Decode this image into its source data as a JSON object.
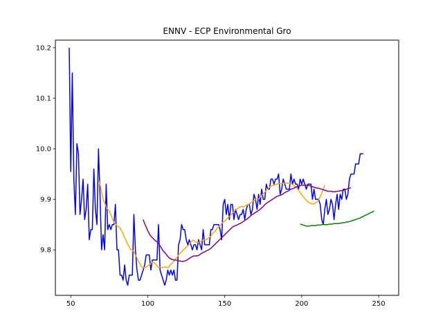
{
  "chart_data": {
    "type": "line",
    "title": "ENNV - ECP Environmental Gro",
    "xlabel": "",
    "ylabel": "",
    "xlim": [
      40,
      263
    ],
    "ylim": [
      9.71,
      10.215
    ],
    "xticks": [
      50,
      100,
      150,
      200,
      250
    ],
    "yticks": [
      9.8,
      9.9,
      10.0,
      10.1,
      10.2
    ],
    "grid": false,
    "legend": "none",
    "series": [
      {
        "color": "#0000ff",
        "x_start": 49,
        "values": [
          10.2,
          9.955,
          10.15,
          9.94,
          9.87,
          10.01,
          9.99,
          9.87,
          9.9,
          9.94,
          9.86,
          9.88,
          9.93,
          9.82,
          9.84,
          9.84,
          9.96,
          9.88,
          9.85,
          10.0,
          9.91,
          9.8,
          9.83,
          9.8,
          9.93,
          9.84,
          9.85,
          9.84,
          9.85,
          9.85,
          9.89,
          9.8,
          9.8,
          9.75,
          9.75,
          9.74,
          9.77,
          9.74,
          9.73,
          9.75,
          9.75,
          9.75,
          9.87,
          9.8,
          9.76,
          9.74,
          9.74,
          9.75,
          9.76,
          9.77,
          9.79,
          9.79,
          9.79,
          9.76,
          9.78,
          9.78,
          9.78,
          9.78,
          9.85,
          9.76,
          9.75,
          9.74,
          9.73,
          9.74,
          9.76,
          9.75,
          9.76,
          9.75,
          9.76,
          9.74,
          9.74,
          9.81,
          9.82,
          9.85,
          9.84,
          9.84,
          9.82,
          9.81,
          9.82,
          9.81,
          9.8,
          9.81,
          9.81,
          9.8,
          9.82,
          9.81,
          9.8,
          9.84,
          9.81,
          9.81,
          9.81,
          9.81,
          9.84,
          9.84,
          9.85,
          9.85,
          9.85,
          9.85,
          9.84,
          9.82,
          9.89,
          9.9,
          9.87,
          9.89,
          9.86,
          9.89,
          9.89,
          9.86,
          9.88,
          9.87,
          9.86,
          9.87,
          9.87,
          9.88,
          9.86,
          9.88,
          9.89,
          9.89,
          9.87,
          9.88,
          9.91,
          9.9,
          9.88,
          9.91,
          9.89,
          9.92,
          9.9,
          9.9,
          9.93,
          9.92,
          9.92,
          9.94,
          9.94,
          9.93,
          9.94,
          9.94,
          9.95,
          9.91,
          9.92,
          9.94,
          9.93,
          9.92,
          9.92,
          9.92,
          9.95,
          9.93,
          9.94,
          9.93,
          9.93,
          9.92,
          9.94,
          9.93,
          9.94,
          9.93,
          9.92,
          9.93,
          9.93,
          9.93,
          9.9,
          9.92,
          9.9,
          9.9,
          9.9,
          9.89,
          9.86,
          9.85,
          9.88,
          9.9,
          9.87,
          9.88,
          9.9,
          9.89,
          9.86,
          9.89,
          9.91,
          9.88,
          9.91,
          9.9,
          9.92,
          9.92,
          9.9,
          9.91,
          9.94,
          9.95,
          9.95,
          9.95,
          9.97,
          9.97,
          9.97,
          9.99,
          9.99,
          9.99
        ]
      },
      {
        "color": "#ffa500",
        "x_start": 68,
        "values": [
          9.938,
          9.93,
          9.915,
          9.9,
          9.893,
          9.885,
          9.88,
          9.877,
          9.87,
          9.862,
          9.855,
          9.851,
          9.848,
          9.846,
          9.843,
          9.838,
          9.832,
          9.824,
          9.818,
          9.811,
          9.806,
          9.8,
          9.8,
          9.797,
          9.79,
          9.784,
          9.777,
          9.772,
          9.766,
          9.765,
          9.765,
          9.766,
          9.768,
          9.77,
          9.773,
          9.776,
          9.775,
          9.772,
          9.769,
          9.765,
          9.766,
          9.765,
          9.765,
          9.766,
          9.766,
          9.765,
          9.767,
          9.772,
          9.774,
          9.778,
          9.782,
          9.785,
          9.79,
          9.793,
          9.796,
          9.8,
          9.802,
          9.805,
          9.808,
          9.811,
          9.815,
          9.819,
          9.818,
          9.816,
          9.815,
          9.815,
          9.816,
          9.818,
          9.819,
          9.82,
          9.82,
          9.822,
          9.825,
          9.827,
          9.832,
          9.835,
          9.838,
          9.843,
          9.845,
          9.848,
          9.852,
          9.855,
          9.857,
          9.86,
          9.863,
          9.866,
          9.869,
          9.873,
          9.876,
          9.879,
          9.881,
          9.883,
          9.885,
          9.886,
          9.885,
          9.886,
          9.888,
          9.889,
          9.891,
          9.893,
          9.896,
          9.897,
          9.9,
          9.901,
          9.901,
          9.904,
          9.908,
          9.911,
          9.914,
          9.918,
          9.92,
          9.924,
          9.926,
          9.927,
          9.928,
          9.929,
          9.93,
          9.931,
          9.931,
          9.931,
          9.932,
          9.932,
          9.932,
          9.932,
          9.931,
          9.931,
          9.929,
          9.927,
          9.925,
          9.922,
          9.918,
          9.914,
          9.909,
          9.905,
          9.902,
          9.898,
          9.895,
          9.893,
          9.892,
          9.891,
          9.891,
          9.893,
          9.895,
          9.899,
          9.905,
          9.912,
          9.92,
          9.928
        ]
      },
      {
        "color": "#800080",
        "x_start": 97,
        "values": [
          9.86,
          9.852,
          9.845,
          9.838,
          9.832,
          9.827,
          9.824,
          9.821,
          9.818,
          9.816,
          9.812,
          9.808,
          9.803,
          9.798,
          9.795,
          9.791,
          9.787,
          9.784,
          9.782,
          9.781,
          9.78,
          9.78,
          9.779,
          9.778,
          9.778,
          9.777,
          9.777,
          9.778,
          9.779,
          9.781,
          9.783,
          9.785,
          9.787,
          9.788,
          9.788,
          9.788,
          9.789,
          9.791,
          9.793,
          9.795,
          9.796,
          9.798,
          9.799,
          9.801,
          9.803,
          9.806,
          9.809,
          9.812,
          9.815,
          9.818,
          9.821,
          9.824,
          9.827,
          9.83,
          9.833,
          9.836,
          9.839,
          9.842,
          9.845,
          9.847,
          9.848,
          9.849,
          9.851,
          9.852,
          9.854,
          9.856,
          9.858,
          9.86,
          9.862,
          9.865,
          9.868,
          9.87,
          9.872,
          9.874,
          9.876,
          9.878,
          9.88,
          9.883,
          9.886,
          9.889,
          9.892,
          9.894,
          9.896,
          9.898,
          9.9,
          9.902,
          9.904,
          9.906,
          9.907,
          9.908,
          9.909,
          9.911,
          9.913,
          9.915,
          9.916,
          9.918,
          9.92,
          9.921,
          9.922,
          9.924,
          9.925,
          9.926,
          9.927,
          9.928,
          9.928,
          9.928,
          9.928,
          9.928,
          9.927,
          9.926,
          9.925,
          9.924,
          9.923,
          9.922,
          9.922,
          9.921,
          9.92,
          9.919,
          9.918,
          9.917,
          9.916,
          9.916,
          9.916,
          9.915,
          9.915,
          9.915,
          9.916,
          9.916,
          9.917,
          9.917,
          9.918,
          9.919,
          9.92,
          9.921,
          9.922,
          9.923
        ]
      },
      {
        "color": "#008000",
        "x_start": 199,
        "values": [
          9.851,
          9.85,
          9.849,
          9.848,
          9.847,
          9.847,
          9.847,
          9.848,
          9.848,
          9.848,
          9.848,
          9.849,
          9.849,
          9.849,
          9.85,
          9.85,
          9.85,
          9.85,
          9.85,
          9.851,
          9.851,
          9.851,
          9.852,
          9.852,
          9.852,
          9.852,
          9.853,
          9.853,
          9.854,
          9.854,
          9.855,
          9.855,
          9.856,
          9.857,
          9.858,
          9.859,
          9.86,
          9.861,
          9.862,
          9.863,
          9.865,
          9.866,
          9.868,
          9.869,
          9.871,
          9.872,
          9.874,
          9.875,
          9.877
        ]
      }
    ]
  }
}
